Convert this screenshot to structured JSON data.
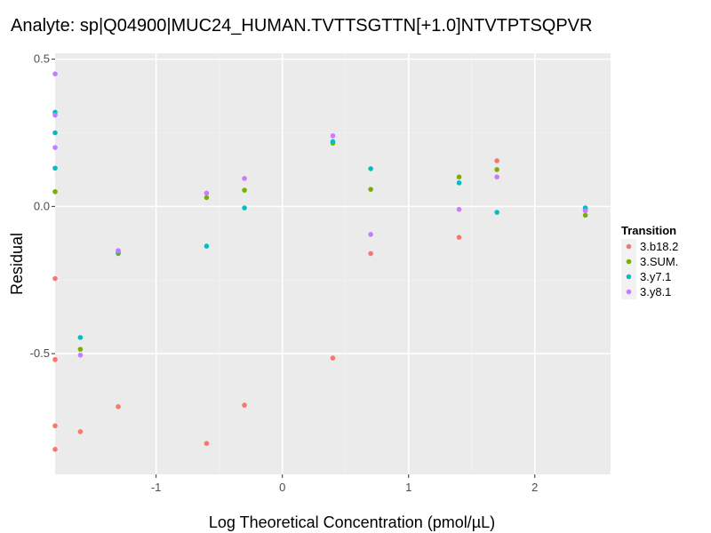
{
  "chart_data": {
    "type": "scatter",
    "title": "Analyte: sp|Q04900|MUC24_HUMAN.TVTTSGTTN[+1.0]NTVTPTSQPVR",
    "xlabel": "Log Theoretical Concentration (pmol/µL)",
    "ylabel": "Residual",
    "xlim": [
      -1.8,
      2.6
    ],
    "ylim": [
      -0.91,
      0.52
    ],
    "x_ticks": [
      -1,
      0,
      1,
      2
    ],
    "x_tick_labels": [
      "-1",
      "0",
      "1",
      "2"
    ],
    "y_ticks": [
      -0.5,
      0.0,
      0.5
    ],
    "y_tick_labels": [
      "-0.5",
      "0.0",
      "0.5"
    ],
    "grid": true,
    "legend": {
      "title": "Transition",
      "position": "right"
    },
    "series": [
      {
        "name": "3.b18.2",
        "color": "#F8766D",
        "points": [
          {
            "x": -1.8,
            "y": -0.245
          },
          {
            "x": -1.8,
            "y": -0.52
          },
          {
            "x": -1.8,
            "y": -0.745
          },
          {
            "x": -1.8,
            "y": -0.825
          },
          {
            "x": -1.6,
            "y": -0.765
          },
          {
            "x": -1.3,
            "y": -0.68
          },
          {
            "x": -0.6,
            "y": -0.805
          },
          {
            "x": -0.3,
            "y": -0.675
          },
          {
            "x": 0.4,
            "y": -0.515
          },
          {
            "x": 0.7,
            "y": -0.16
          },
          {
            "x": 1.4,
            "y": -0.105
          },
          {
            "x": 1.7,
            "y": 0.155
          },
          {
            "x": 2.4,
            "y": -0.01
          }
        ]
      },
      {
        "name": "3.SUM.",
        "color": "#7CAE00",
        "points": [
          {
            "x": -1.8,
            "y": 0.05
          },
          {
            "x": -1.6,
            "y": -0.485
          },
          {
            "x": -1.3,
            "y": -0.16
          },
          {
            "x": -0.6,
            "y": 0.03
          },
          {
            "x": -0.3,
            "y": 0.055
          },
          {
            "x": 0.4,
            "y": 0.215
          },
          {
            "x": 0.7,
            "y": 0.058
          },
          {
            "x": 1.4,
            "y": 0.1
          },
          {
            "x": 1.7,
            "y": 0.125
          },
          {
            "x": 2.4,
            "y": -0.03
          }
        ]
      },
      {
        "name": "3.y7.1",
        "color": "#00BFC4",
        "points": [
          {
            "x": -1.8,
            "y": 0.32
          },
          {
            "x": -1.8,
            "y": 0.25
          },
          {
            "x": -1.8,
            "y": 0.13
          },
          {
            "x": -1.6,
            "y": -0.445
          },
          {
            "x": -1.3,
            "y": -0.155
          },
          {
            "x": -0.6,
            "y": -0.135
          },
          {
            "x": -0.3,
            "y": -0.005
          },
          {
            "x": 0.4,
            "y": 0.22
          },
          {
            "x": 0.7,
            "y": 0.128
          },
          {
            "x": 1.4,
            "y": 0.08
          },
          {
            "x": 1.7,
            "y": -0.02
          },
          {
            "x": 2.4,
            "y": -0.005
          }
        ]
      },
      {
        "name": "3.y8.1",
        "color": "#C77CFF",
        "points": [
          {
            "x": -1.8,
            "y": 0.45
          },
          {
            "x": -1.8,
            "y": 0.31
          },
          {
            "x": -1.8,
            "y": 0.2
          },
          {
            "x": -1.6,
            "y": -0.505
          },
          {
            "x": -1.3,
            "y": -0.15
          },
          {
            "x": -0.6,
            "y": 0.045
          },
          {
            "x": -0.3,
            "y": 0.095
          },
          {
            "x": 0.4,
            "y": 0.24
          },
          {
            "x": 0.7,
            "y": -0.095
          },
          {
            "x": 1.4,
            "y": -0.01
          },
          {
            "x": 1.7,
            "y": 0.1
          },
          {
            "x": 2.4,
            "y": -0.015
          }
        ]
      }
    ]
  }
}
